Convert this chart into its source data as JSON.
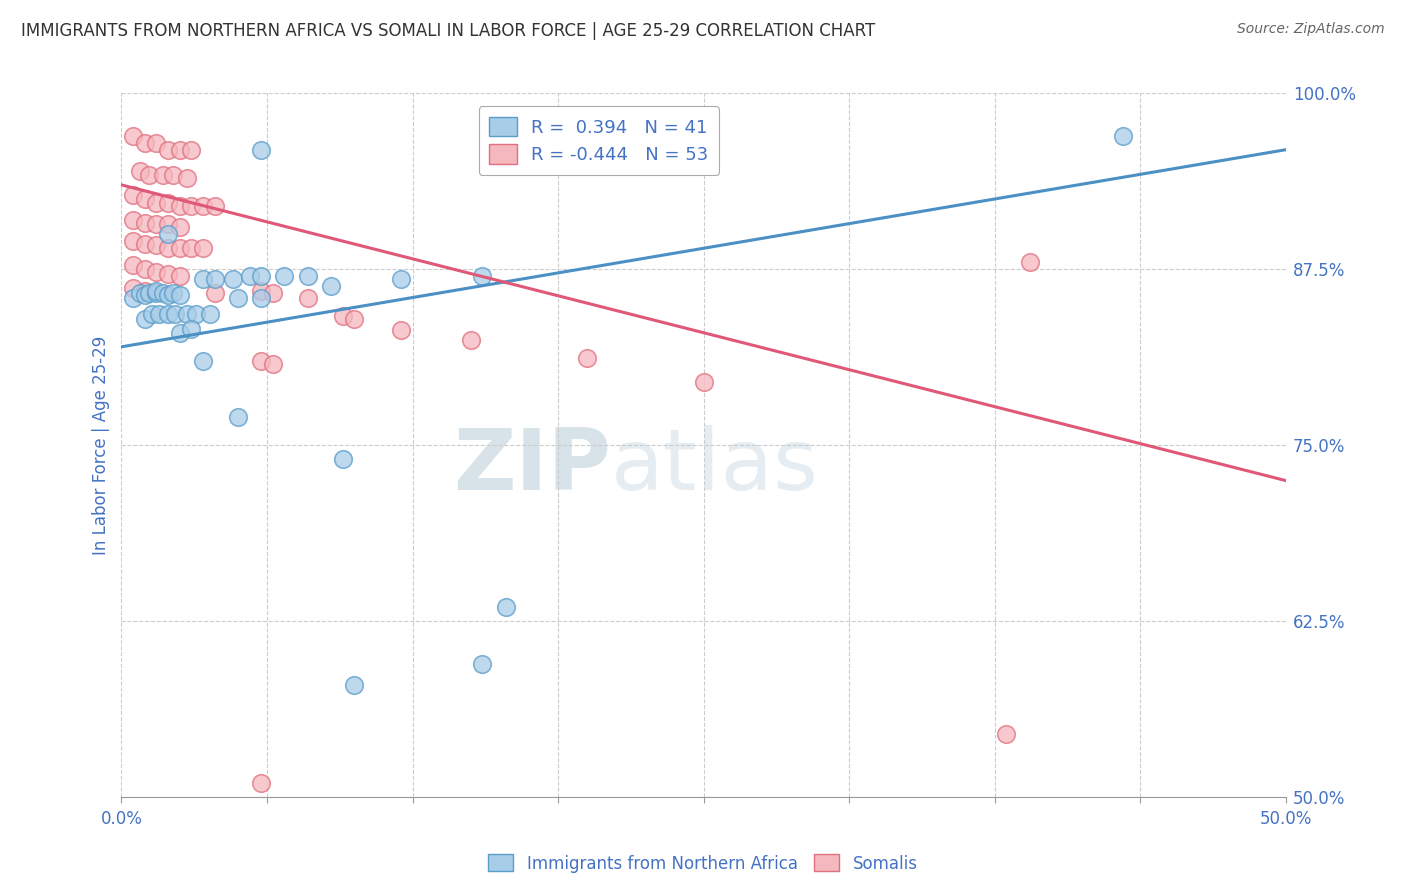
{
  "title": "IMMIGRANTS FROM NORTHERN AFRICA VS SOMALI IN LABOR FORCE | AGE 25-29 CORRELATION CHART",
  "source": "Source: ZipAtlas.com",
  "ylabel": "In Labor Force | Age 25-29",
  "xlim": [
    0.0,
    0.5
  ],
  "ylim": [
    0.5,
    1.0
  ],
  "ytick_values": [
    0.5,
    0.625,
    0.75,
    0.875,
    1.0
  ],
  "ytick_labels": [
    "50.0%",
    "62.5%",
    "75.0%",
    "87.5%",
    "100.0%"
  ],
  "xtick_values": [
    0.0,
    0.0625,
    0.125,
    0.1875,
    0.25,
    0.3125,
    0.375,
    0.4375,
    0.5
  ],
  "xtick_labels": [
    "0.0%",
    "",
    "",
    "",
    "",
    "",
    "",
    "",
    "50.0%"
  ],
  "blue_R": 0.394,
  "blue_N": 41,
  "pink_R": -0.444,
  "pink_N": 53,
  "blue_color": "#a8cde8",
  "pink_color": "#f5b8be",
  "blue_edge_color": "#5b9dc9",
  "pink_edge_color": "#e07080",
  "blue_line_color": "#4a90c4",
  "pink_line_color": "#e05878",
  "blue_scatter": [
    [
      0.005,
      0.855
    ],
    [
      0.008,
      0.858
    ],
    [
      0.01,
      0.857
    ],
    [
      0.012,
      0.858
    ],
    [
      0.015,
      0.858
    ],
    [
      0.015,
      0.86
    ],
    [
      0.018,
      0.858
    ],
    [
      0.02,
      0.857
    ],
    [
      0.022,
      0.858
    ],
    [
      0.025,
      0.857
    ],
    [
      0.01,
      0.84
    ],
    [
      0.013,
      0.843
    ],
    [
      0.016,
      0.843
    ],
    [
      0.02,
      0.843
    ],
    [
      0.023,
      0.843
    ],
    [
      0.028,
      0.843
    ],
    [
      0.032,
      0.843
    ],
    [
      0.038,
      0.843
    ],
    [
      0.025,
      0.83
    ],
    [
      0.03,
      0.833
    ],
    [
      0.035,
      0.868
    ],
    [
      0.04,
      0.868
    ],
    [
      0.048,
      0.868
    ],
    [
      0.055,
      0.87
    ],
    [
      0.06,
      0.87
    ],
    [
      0.07,
      0.87
    ],
    [
      0.08,
      0.87
    ],
    [
      0.05,
      0.855
    ],
    [
      0.06,
      0.855
    ],
    [
      0.02,
      0.9
    ],
    [
      0.09,
      0.863
    ],
    [
      0.12,
      0.868
    ],
    [
      0.155,
      0.87
    ],
    [
      0.035,
      0.81
    ],
    [
      0.05,
      0.77
    ],
    [
      0.095,
      0.74
    ],
    [
      0.155,
      0.595
    ],
    [
      0.1,
      0.58
    ],
    [
      0.165,
      0.635
    ],
    [
      0.43,
      0.97
    ],
    [
      0.06,
      0.96
    ]
  ],
  "pink_scatter": [
    [
      0.005,
      0.97
    ],
    [
      0.01,
      0.965
    ],
    [
      0.015,
      0.965
    ],
    [
      0.02,
      0.96
    ],
    [
      0.025,
      0.96
    ],
    [
      0.03,
      0.96
    ],
    [
      0.008,
      0.945
    ],
    [
      0.012,
      0.942
    ],
    [
      0.018,
      0.942
    ],
    [
      0.022,
      0.942
    ],
    [
      0.028,
      0.94
    ],
    [
      0.005,
      0.928
    ],
    [
      0.01,
      0.925
    ],
    [
      0.015,
      0.922
    ],
    [
      0.02,
      0.922
    ],
    [
      0.025,
      0.92
    ],
    [
      0.03,
      0.92
    ],
    [
      0.035,
      0.92
    ],
    [
      0.04,
      0.92
    ],
    [
      0.005,
      0.91
    ],
    [
      0.01,
      0.908
    ],
    [
      0.015,
      0.907
    ],
    [
      0.02,
      0.907
    ],
    [
      0.025,
      0.905
    ],
    [
      0.005,
      0.895
    ],
    [
      0.01,
      0.893
    ],
    [
      0.015,
      0.892
    ],
    [
      0.02,
      0.89
    ],
    [
      0.025,
      0.89
    ],
    [
      0.03,
      0.89
    ],
    [
      0.035,
      0.89
    ],
    [
      0.005,
      0.878
    ],
    [
      0.01,
      0.875
    ],
    [
      0.015,
      0.873
    ],
    [
      0.02,
      0.872
    ],
    [
      0.025,
      0.87
    ],
    [
      0.005,
      0.862
    ],
    [
      0.01,
      0.86
    ],
    [
      0.04,
      0.858
    ],
    [
      0.06,
      0.86
    ],
    [
      0.065,
      0.858
    ],
    [
      0.08,
      0.855
    ],
    [
      0.095,
      0.842
    ],
    [
      0.1,
      0.84
    ],
    [
      0.12,
      0.832
    ],
    [
      0.15,
      0.825
    ],
    [
      0.06,
      0.81
    ],
    [
      0.065,
      0.808
    ],
    [
      0.2,
      0.812
    ],
    [
      0.25,
      0.795
    ],
    [
      0.39,
      0.88
    ],
    [
      0.38,
      0.545
    ],
    [
      0.06,
      0.51
    ]
  ],
  "watermark_zip": "ZIP",
  "watermark_atlas": "atlas",
  "blue_line_x": [
    0.0,
    0.5
  ],
  "blue_line_y": [
    0.82,
    0.96
  ],
  "pink_line_x": [
    0.0,
    0.5
  ],
  "pink_line_y": [
    0.935,
    0.725
  ]
}
